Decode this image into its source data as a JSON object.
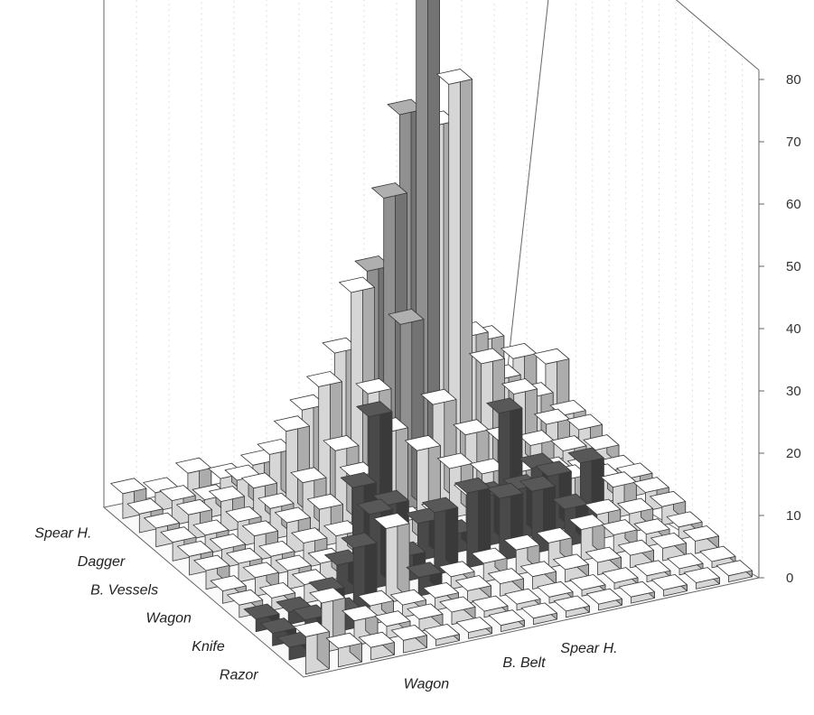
{
  "chart_data": {
    "type": "bar3d",
    "title": "",
    "z_ticks": [
      "0",
      "10",
      "20",
      "30",
      "40",
      "50",
      "60",
      "70",
      "80"
    ],
    "zlim": [
      0,
      80
    ],
    "row_axis_labels": [
      {
        "name": "Spear H.",
        "row": 0
      },
      {
        "name": "Dagger",
        "row": 1
      },
      {
        "name": "B. Vessels",
        "row": 2
      },
      {
        "name": "Wagon",
        "row": 3
      },
      {
        "name": "Knife",
        "row": 4
      },
      {
        "name": "Razor",
        "row": 5
      }
    ],
    "col_axis_labels": [
      {
        "name": "Wagon",
        "col": 3
      },
      {
        "name": "B. Belt",
        "col": 6
      },
      {
        "name": "Spear H.",
        "col": 8
      }
    ],
    "rows": 12,
    "cols": 14,
    "grid": true,
    "colors": {
      "light": "#e9e9e9",
      "mid": "#9c9c9c",
      "dark": "#4f4f4f",
      "axis": "#666666",
      "back_grid": "#dddddd"
    },
    "bars": [
      {
        "row": 0,
        "col": 0,
        "value": 4,
        "shade": "light"
      },
      {
        "row": 0,
        "col": 1,
        "value": 3,
        "shade": "light"
      },
      {
        "row": 0,
        "col": 2,
        "value": 5,
        "shade": "light"
      },
      {
        "row": 0,
        "col": 3,
        "value": 3,
        "shade": "light"
      },
      {
        "row": 0,
        "col": 4,
        "value": 4,
        "shade": "light"
      },
      {
        "row": 0,
        "col": 5,
        "value": 4,
        "shade": "light"
      },
      {
        "row": 0,
        "col": 6,
        "value": 6,
        "shade": "light"
      },
      {
        "row": 0,
        "col": 7,
        "value": 12,
        "shade": "light"
      },
      {
        "row": 0,
        "col": 8,
        "value": 16,
        "shade": "light"
      },
      {
        "row": 0,
        "col": 9,
        "value": 26,
        "shade": "light"
      },
      {
        "row": 0,
        "col": 10,
        "value": 24,
        "shade": "light"
      },
      {
        "row": 0,
        "col": 11,
        "value": 16,
        "shade": "light"
      },
      {
        "row": 0,
        "col": 12,
        "value": 12,
        "shade": "light"
      },
      {
        "row": 0,
        "col": 13,
        "value": 10,
        "shade": "light"
      },
      {
        "row": 1,
        "col": 0,
        "value": 3,
        "shade": "light"
      },
      {
        "row": 1,
        "col": 1,
        "value": 4,
        "shade": "light"
      },
      {
        "row": 1,
        "col": 2,
        "value": 3,
        "shade": "light"
      },
      {
        "row": 1,
        "col": 3,
        "value": 5,
        "shade": "light"
      },
      {
        "row": 1,
        "col": 4,
        "value": 8,
        "shade": "light"
      },
      {
        "row": 1,
        "col": 5,
        "value": 14,
        "shade": "light"
      },
      {
        "row": 1,
        "col": 6,
        "value": 22,
        "shade": "light"
      },
      {
        "row": 1,
        "col": 7,
        "value": 34,
        "shade": "mid"
      },
      {
        "row": 1,
        "col": 8,
        "value": 58,
        "shade": "mid"
      },
      {
        "row": 1,
        "col": 9,
        "value": 55,
        "shade": "light"
      },
      {
        "row": 1,
        "col": 10,
        "value": 20,
        "shade": "light"
      },
      {
        "row": 1,
        "col": 11,
        "value": 12,
        "shade": "light"
      },
      {
        "row": 1,
        "col": 12,
        "value": 8,
        "shade": "light"
      },
      {
        "row": 1,
        "col": 13,
        "value": 4,
        "shade": "light"
      },
      {
        "row": 2,
        "col": 0,
        "value": 3,
        "shade": "light"
      },
      {
        "row": 2,
        "col": 1,
        "value": 4,
        "shade": "light"
      },
      {
        "row": 2,
        "col": 2,
        "value": 5,
        "shade": "light"
      },
      {
        "row": 2,
        "col": 3,
        "value": 6,
        "shade": "light"
      },
      {
        "row": 2,
        "col": 4,
        "value": 14,
        "shade": "light"
      },
      {
        "row": 2,
        "col": 5,
        "value": 20,
        "shade": "light"
      },
      {
        "row": 2,
        "col": 6,
        "value": 34,
        "shade": "light"
      },
      {
        "row": 2,
        "col": 7,
        "value": 48,
        "shade": "mid"
      },
      {
        "row": 2,
        "col": 8,
        "value": 80,
        "shade": "mid"
      },
      {
        "row": 2,
        "col": 9,
        "value": 64,
        "shade": "light"
      },
      {
        "row": 2,
        "col": 10,
        "value": 18,
        "shade": "light"
      },
      {
        "row": 2,
        "col": 11,
        "value": 12,
        "shade": "light"
      },
      {
        "row": 2,
        "col": 12,
        "value": 6,
        "shade": "light"
      },
      {
        "row": 2,
        "col": 13,
        "value": 4,
        "shade": "light"
      },
      {
        "row": 3,
        "col": 0,
        "value": 3,
        "shade": "light"
      },
      {
        "row": 3,
        "col": 1,
        "value": 3,
        "shade": "light"
      },
      {
        "row": 3,
        "col": 2,
        "value": 4,
        "shade": "light"
      },
      {
        "row": 3,
        "col": 3,
        "value": 5,
        "shade": "light"
      },
      {
        "row": 3,
        "col": 4,
        "value": 8,
        "shade": "light"
      },
      {
        "row": 3,
        "col": 5,
        "value": 12,
        "shade": "light"
      },
      {
        "row": 3,
        "col": 6,
        "value": 20,
        "shade": "light"
      },
      {
        "row": 3,
        "col": 7,
        "value": 30,
        "shade": "mid"
      },
      {
        "row": 3,
        "col": 8,
        "value": 16,
        "shade": "light"
      },
      {
        "row": 3,
        "col": 9,
        "value": 10,
        "shade": "light"
      },
      {
        "row": 3,
        "col": 10,
        "value": 8,
        "shade": "light"
      },
      {
        "row": 3,
        "col": 11,
        "value": 6,
        "shade": "light"
      },
      {
        "row": 3,
        "col": 12,
        "value": 4,
        "shade": "light"
      },
      {
        "row": 3,
        "col": 13,
        "value": 3,
        "shade": "light"
      },
      {
        "row": 4,
        "col": 0,
        "value": 3,
        "shade": "light"
      },
      {
        "row": 4,
        "col": 1,
        "value": 3,
        "shade": "light"
      },
      {
        "row": 4,
        "col": 2,
        "value": 4,
        "shade": "light"
      },
      {
        "row": 4,
        "col": 3,
        "value": 5,
        "shade": "light"
      },
      {
        "row": 4,
        "col": 4,
        "value": 6,
        "shade": "light"
      },
      {
        "row": 4,
        "col": 5,
        "value": 10,
        "shade": "light"
      },
      {
        "row": 4,
        "col": 6,
        "value": 16,
        "shade": "light"
      },
      {
        "row": 4,
        "col": 7,
        "value": 12,
        "shade": "light"
      },
      {
        "row": 4,
        "col": 8,
        "value": 8,
        "shade": "light"
      },
      {
        "row": 4,
        "col": 9,
        "value": 6,
        "shade": "light"
      },
      {
        "row": 4,
        "col": 10,
        "value": 5,
        "shade": "light"
      },
      {
        "row": 4,
        "col": 11,
        "value": 4,
        "shade": "light"
      },
      {
        "row": 4,
        "col": 12,
        "value": 3,
        "shade": "light"
      },
      {
        "row": 4,
        "col": 13,
        "value": 2,
        "shade": "light"
      },
      {
        "row": 5,
        "col": 0,
        "value": 3,
        "shade": "light"
      },
      {
        "row": 5,
        "col": 1,
        "value": 3,
        "shade": "light"
      },
      {
        "row": 5,
        "col": 2,
        "value": 3,
        "shade": "light"
      },
      {
        "row": 5,
        "col": 3,
        "value": 4,
        "shade": "light"
      },
      {
        "row": 5,
        "col": 4,
        "value": 4,
        "shade": "light"
      },
      {
        "row": 5,
        "col": 5,
        "value": 22,
        "shade": "dark"
      },
      {
        "row": 5,
        "col": 6,
        "value": 4,
        "shade": "light"
      },
      {
        "row": 5,
        "col": 7,
        "value": 4,
        "shade": "light"
      },
      {
        "row": 5,
        "col": 8,
        "value": 6,
        "shade": "light"
      },
      {
        "row": 5,
        "col": 9,
        "value": 18,
        "shade": "dark"
      },
      {
        "row": 5,
        "col": 10,
        "value": 8,
        "shade": "dark"
      },
      {
        "row": 5,
        "col": 11,
        "value": 5,
        "shade": "light"
      },
      {
        "row": 5,
        "col": 12,
        "value": 4,
        "shade": "light"
      },
      {
        "row": 5,
        "col": 13,
        "value": 3,
        "shade": "light"
      },
      {
        "row": 6,
        "col": 0,
        "value": 2,
        "shade": "light"
      },
      {
        "row": 6,
        "col": 1,
        "value": 3,
        "shade": "light"
      },
      {
        "row": 6,
        "col": 2,
        "value": 3,
        "shade": "light"
      },
      {
        "row": 6,
        "col": 3,
        "value": 3,
        "shade": "light"
      },
      {
        "row": 6,
        "col": 4,
        "value": 14,
        "shade": "dark"
      },
      {
        "row": 6,
        "col": 5,
        "value": 10,
        "shade": "dark"
      },
      {
        "row": 6,
        "col": 6,
        "value": 6,
        "shade": "dark"
      },
      {
        "row": 6,
        "col": 7,
        "value": 3,
        "shade": "dark"
      },
      {
        "row": 6,
        "col": 8,
        "value": 8,
        "shade": "dark"
      },
      {
        "row": 6,
        "col": 9,
        "value": 8,
        "shade": "dark"
      },
      {
        "row": 6,
        "col": 10,
        "value": 9,
        "shade": "dark"
      },
      {
        "row": 6,
        "col": 11,
        "value": 10,
        "shade": "dark"
      },
      {
        "row": 6,
        "col": 12,
        "value": 5,
        "shade": "light"
      },
      {
        "row": 6,
        "col": 13,
        "value": 3,
        "shade": "light"
      },
      {
        "row": 7,
        "col": 0,
        "value": 2,
        "shade": "light"
      },
      {
        "row": 7,
        "col": 1,
        "value": 2,
        "shade": "light"
      },
      {
        "row": 7,
        "col": 2,
        "value": 3,
        "shade": "light"
      },
      {
        "row": 7,
        "col": 3,
        "value": 5,
        "shade": "dark"
      },
      {
        "row": 7,
        "col": 4,
        "value": 12,
        "shade": "dark"
      },
      {
        "row": 7,
        "col": 5,
        "value": 4,
        "shade": "dark"
      },
      {
        "row": 7,
        "col": 6,
        "value": 10,
        "shade": "dark"
      },
      {
        "row": 7,
        "col": 7,
        "value": 12,
        "shade": "dark"
      },
      {
        "row": 7,
        "col": 8,
        "value": 10,
        "shade": "dark"
      },
      {
        "row": 7,
        "col": 9,
        "value": 10,
        "shade": "dark"
      },
      {
        "row": 7,
        "col": 10,
        "value": 6,
        "shade": "dark"
      },
      {
        "row": 7,
        "col": 11,
        "value": 4,
        "shade": "light"
      },
      {
        "row": 7,
        "col": 12,
        "value": 3,
        "shade": "light"
      },
      {
        "row": 7,
        "col": 13,
        "value": 3,
        "shade": "light"
      },
      {
        "row": 8,
        "col": 0,
        "value": 2,
        "shade": "dark"
      },
      {
        "row": 8,
        "col": 1,
        "value": 2,
        "shade": "dark"
      },
      {
        "row": 8,
        "col": 2,
        "value": 4,
        "shade": "dark"
      },
      {
        "row": 8,
        "col": 3,
        "value": 10,
        "shade": "dark"
      },
      {
        "row": 8,
        "col": 4,
        "value": 12,
        "shade": "light"
      },
      {
        "row": 8,
        "col": 5,
        "value": 3,
        "shade": "dark"
      },
      {
        "row": 8,
        "col": 6,
        "value": 2,
        "shade": "light"
      },
      {
        "row": 8,
        "col": 7,
        "value": 3,
        "shade": "light"
      },
      {
        "row": 8,
        "col": 8,
        "value": 4,
        "shade": "light"
      },
      {
        "row": 8,
        "col": 9,
        "value": 4,
        "shade": "light"
      },
      {
        "row": 8,
        "col": 10,
        "value": 5,
        "shade": "light"
      },
      {
        "row": 8,
        "col": 11,
        "value": 3,
        "shade": "light"
      },
      {
        "row": 8,
        "col": 12,
        "value": 2,
        "shade": "light"
      },
      {
        "row": 8,
        "col": 13,
        "value": 2,
        "shade": "light"
      },
      {
        "row": 9,
        "col": 0,
        "value": 2,
        "shade": "dark"
      },
      {
        "row": 9,
        "col": 1,
        "value": 3,
        "shade": "dark"
      },
      {
        "row": 9,
        "col": 2,
        "value": 3,
        "shade": "dark"
      },
      {
        "row": 9,
        "col": 3,
        "value": 3,
        "shade": "light"
      },
      {
        "row": 9,
        "col": 4,
        "value": 2,
        "shade": "light"
      },
      {
        "row": 9,
        "col": 5,
        "value": 2,
        "shade": "light"
      },
      {
        "row": 9,
        "col": 6,
        "value": 2,
        "shade": "light"
      },
      {
        "row": 9,
        "col": 7,
        "value": 2,
        "shade": "light"
      },
      {
        "row": 9,
        "col": 8,
        "value": 2,
        "shade": "light"
      },
      {
        "row": 9,
        "col": 9,
        "value": 2,
        "shade": "light"
      },
      {
        "row": 9,
        "col": 10,
        "value": 2,
        "shade": "light"
      },
      {
        "row": 9,
        "col": 11,
        "value": 2,
        "shade": "light"
      },
      {
        "row": 9,
        "col": 12,
        "value": 2,
        "shade": "light"
      },
      {
        "row": 9,
        "col": 13,
        "value": 2,
        "shade": "light"
      },
      {
        "row": 10,
        "col": 0,
        "value": 2,
        "shade": "dark"
      },
      {
        "row": 10,
        "col": 1,
        "value": 8,
        "shade": "light"
      },
      {
        "row": 10,
        "col": 2,
        "value": 4,
        "shade": "light"
      },
      {
        "row": 10,
        "col": 3,
        "value": 2,
        "shade": "light"
      },
      {
        "row": 10,
        "col": 4,
        "value": 2,
        "shade": "light"
      },
      {
        "row": 10,
        "col": 5,
        "value": 2,
        "shade": "light"
      },
      {
        "row": 10,
        "col": 6,
        "value": 1,
        "shade": "light"
      },
      {
        "row": 10,
        "col": 7,
        "value": 1,
        "shade": "light"
      },
      {
        "row": 10,
        "col": 8,
        "value": 1,
        "shade": "light"
      },
      {
        "row": 10,
        "col": 9,
        "value": 1,
        "shade": "light"
      },
      {
        "row": 10,
        "col": 10,
        "value": 1,
        "shade": "light"
      },
      {
        "row": 10,
        "col": 11,
        "value": 1,
        "shade": "light"
      },
      {
        "row": 10,
        "col": 12,
        "value": 1,
        "shade": "light"
      },
      {
        "row": 10,
        "col": 13,
        "value": 1,
        "shade": "light"
      },
      {
        "row": 11,
        "col": 0,
        "value": 6,
        "shade": "light"
      },
      {
        "row": 11,
        "col": 1,
        "value": 3,
        "shade": "light"
      },
      {
        "row": 11,
        "col": 2,
        "value": 2,
        "shade": "light"
      },
      {
        "row": 11,
        "col": 3,
        "value": 2,
        "shade": "light"
      },
      {
        "row": 11,
        "col": 4,
        "value": 1,
        "shade": "light"
      },
      {
        "row": 11,
        "col": 5,
        "value": 1,
        "shade": "light"
      },
      {
        "row": 11,
        "col": 6,
        "value": 1,
        "shade": "light"
      },
      {
        "row": 11,
        "col": 7,
        "value": 1,
        "shade": "light"
      },
      {
        "row": 11,
        "col": 8,
        "value": 1,
        "shade": "light"
      },
      {
        "row": 11,
        "col": 9,
        "value": 1,
        "shade": "light"
      },
      {
        "row": 11,
        "col": 10,
        "value": 1,
        "shade": "light"
      },
      {
        "row": 11,
        "col": 11,
        "value": 1,
        "shade": "light"
      },
      {
        "row": 11,
        "col": 12,
        "value": 1,
        "shade": "light"
      },
      {
        "row": 11,
        "col": 13,
        "value": 1,
        "shade": "light"
      }
    ]
  }
}
